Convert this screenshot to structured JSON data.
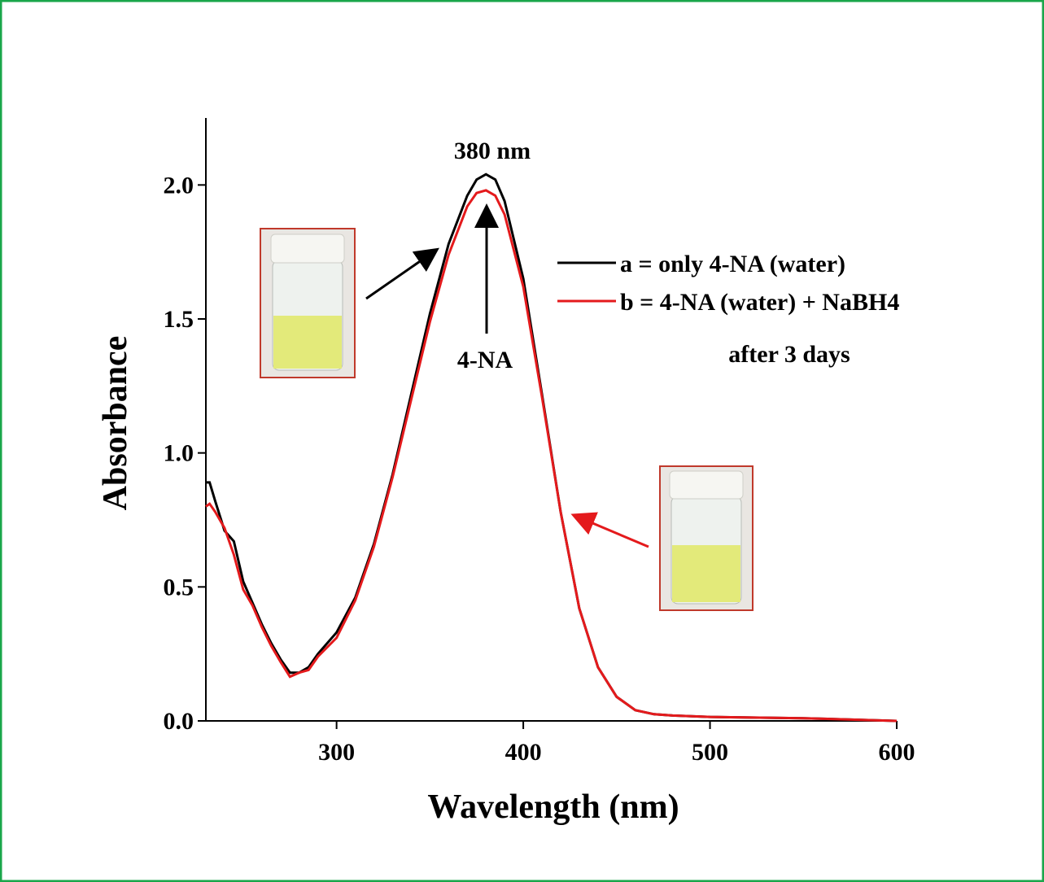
{
  "chart_data": {
    "type": "line",
    "x_label": "Wavelength (nm)",
    "y_label": "Absorbance",
    "xlim": [
      230,
      600
    ],
    "ylim": [
      0,
      2.25
    ],
    "xticks": [
      300,
      400,
      500,
      600
    ],
    "yticks": [
      {
        "value": 0,
        "label": "0.0"
      },
      {
        "value": 0.5,
        "label": "0.5"
      },
      {
        "value": 1,
        "label": "1.0"
      },
      {
        "value": 1.5,
        "label": "1.5"
      },
      {
        "value": 2,
        "label": "2.0"
      }
    ],
    "x": [
      230,
      232,
      235,
      240,
      245,
      250,
      255,
      260,
      265,
      270,
      275,
      280,
      285,
      290,
      300,
      310,
      320,
      330,
      340,
      350,
      360,
      370,
      375,
      380,
      385,
      390,
      400,
      410,
      420,
      430,
      440,
      450,
      460,
      470,
      480,
      500,
      550,
      600
    ],
    "series": [
      {
        "name": "a = only 4-NA (water)",
        "color": "#000000",
        "values": [
          0.89,
          0.89,
          0.82,
          0.71,
          0.67,
          0.52,
          0.44,
          0.36,
          0.29,
          0.23,
          0.18,
          0.18,
          0.2,
          0.25,
          0.33,
          0.46,
          0.66,
          0.92,
          1.22,
          1.52,
          1.78,
          1.96,
          2.02,
          2.04,
          2.02,
          1.94,
          1.65,
          1.22,
          0.78,
          0.42,
          0.2,
          0.09,
          0.04,
          0.025,
          0.02,
          0.015,
          0.01,
          0.0
        ]
      },
      {
        "name": "b = 4-NA (water) + NaBH4",
        "color": "#e41a1c",
        "values": [
          0.8,
          0.81,
          0.78,
          0.72,
          0.62,
          0.49,
          0.43,
          0.35,
          0.28,
          0.22,
          0.165,
          0.18,
          0.19,
          0.24,
          0.31,
          0.45,
          0.65,
          0.91,
          1.2,
          1.49,
          1.74,
          1.92,
          1.97,
          1.98,
          1.96,
          1.89,
          1.62,
          1.21,
          0.78,
          0.42,
          0.2,
          0.09,
          0.04,
          0.025,
          0.02,
          0.015,
          0.01,
          0.0
        ]
      }
    ],
    "annotations": [
      "380 nm",
      "4-NA",
      "after 3 days"
    ]
  }
}
